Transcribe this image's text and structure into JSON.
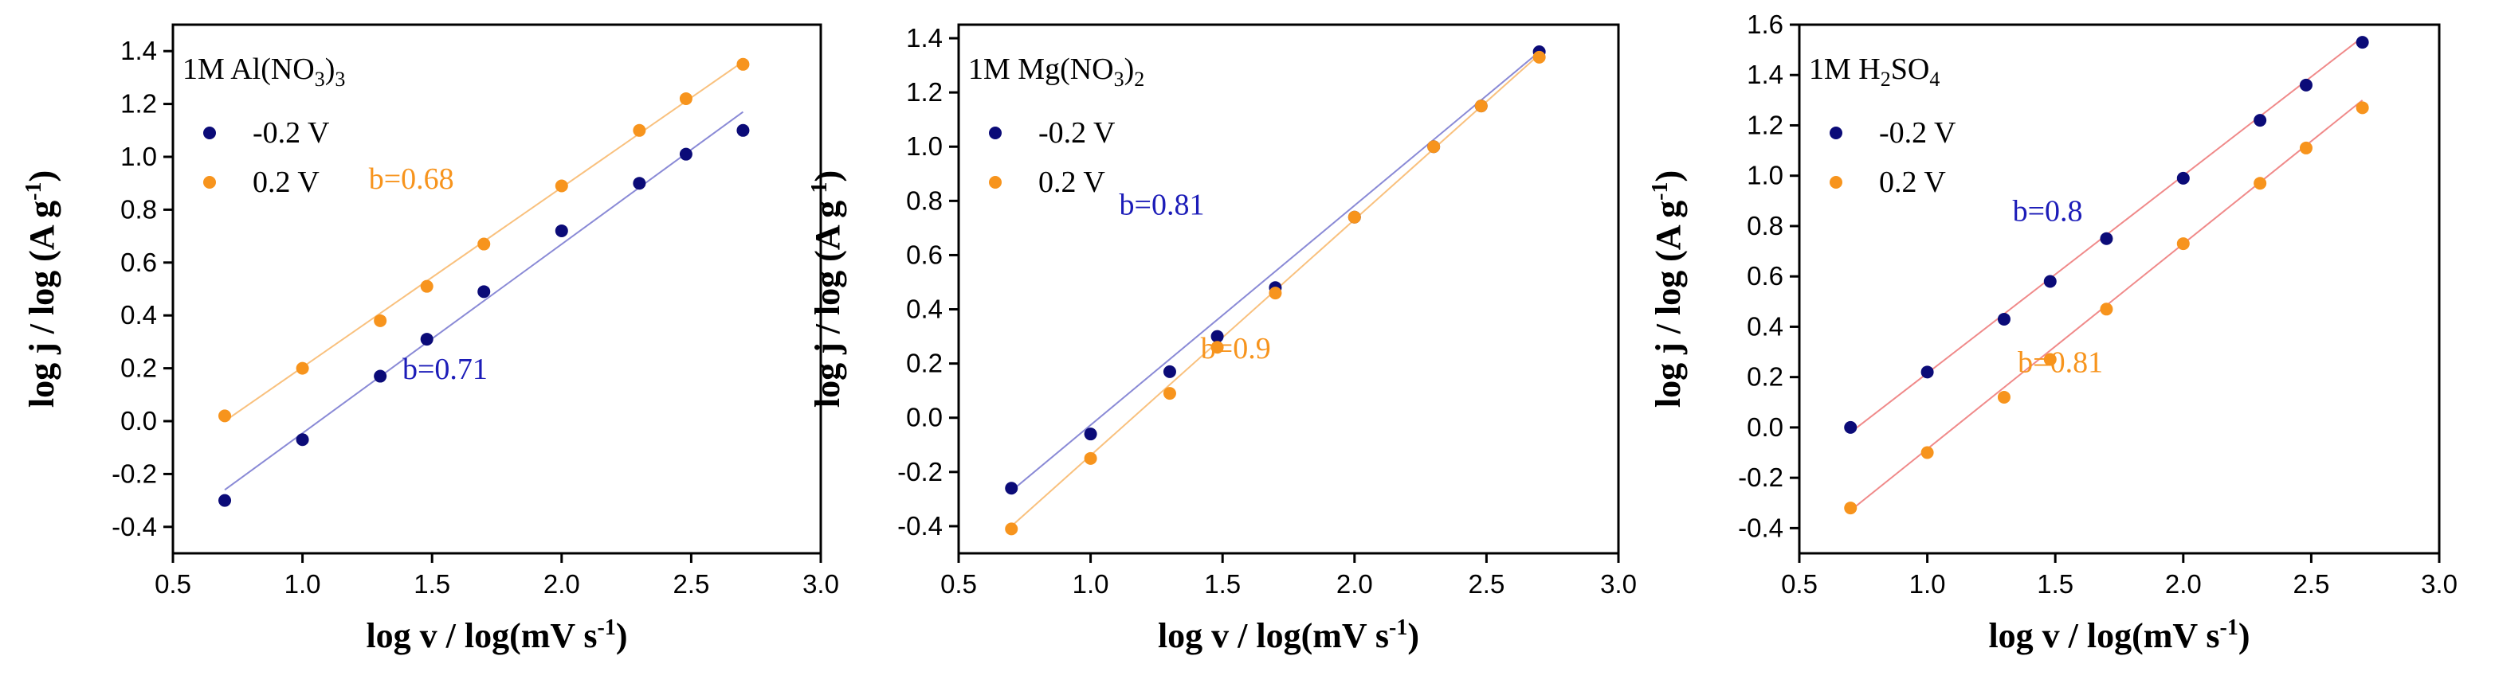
{
  "colors": {
    "navy": "#0b0b78",
    "orange": "#f7941d",
    "navy_line": "#8a8ad6",
    "orange_line": "#f9c17e",
    "navy_label": "#1c1cb8",
    "orange_label": "#f7941d",
    "red_line": "#f08a8a"
  },
  "chart_data": [
    {
      "type": "scatter",
      "panel_label": "1M Al(NO3)3",
      "panel_label_parts": {
        "prefix": "1M Al(NO",
        "sub1": "3",
        "mid": ")",
        "sub2": "3"
      },
      "xlabel": "log v / log(mV s-1)",
      "xlabel_parts": {
        "main": "log v / log(mV s",
        "sup": "-1",
        "end": ")"
      },
      "ylabel": "log j / log (A g-1)",
      "ylabel_parts": {
        "main": "log j / log (A g",
        "sup": "-1",
        "end": ")"
      },
      "xlim": [
        0.5,
        3.0
      ],
      "ylim": [
        -0.5,
        1.5
      ],
      "x_ticks": [
        "0.5",
        "1.0",
        "1.5",
        "2.0",
        "2.5",
        "3.0"
      ],
      "y_ticks": [
        "-0.4",
        "-0.2",
        "0.0",
        "0.2",
        "0.4",
        "0.6",
        "0.8",
        "1.0",
        "1.2",
        "1.4"
      ],
      "series": [
        {
          "name": "-0.2 V",
          "color_key": "navy",
          "line_color_key": "navy_line",
          "x": [
            0.7,
            1.0,
            1.3,
            1.48,
            1.7,
            2.0,
            2.3,
            2.48,
            2.7
          ],
          "y": [
            -0.3,
            -0.07,
            0.17,
            0.31,
            0.49,
            0.72,
            0.9,
            1.01,
            1.1
          ],
          "fit": {
            "x0": 0.7,
            "y0": -0.26,
            "x1": 2.7,
            "y1": 1.17
          },
          "slope_label": "b=0.71",
          "slope_label_pos": [
            1.55,
            0.16
          ],
          "label_color_key": "navy_label"
        },
        {
          "name": "0.2 V",
          "color_key": "orange",
          "line_color_key": "orange_line",
          "x": [
            0.7,
            1.0,
            1.3,
            1.48,
            1.7,
            2.0,
            2.3,
            2.48,
            2.7
          ],
          "y": [
            0.02,
            0.2,
            0.38,
            0.51,
            0.67,
            0.89,
            1.1,
            1.22,
            1.35
          ],
          "fit": {
            "x0": 0.7,
            "y0": 0.0,
            "x1": 2.7,
            "y1": 1.36
          },
          "slope_label": "b=0.68",
          "slope_label_pos": [
            1.42,
            0.88
          ],
          "label_color_key": "orange_label"
        }
      ]
    },
    {
      "type": "scatter",
      "panel_label": "1M Mg(NO3)2",
      "panel_label_parts": {
        "prefix": "1M Mg(NO",
        "sub1": "3",
        "mid": ")",
        "sub2": "2"
      },
      "xlabel": "log v / log(mV s-1)",
      "xlabel_parts": {
        "main": "log v / log(mV s",
        "sup": "-1",
        "end": ")"
      },
      "ylabel": "log j / log (A g-1)",
      "ylabel_parts": {
        "main": "log j / log (A g",
        "sup": "-1",
        "end": ")"
      },
      "xlim": [
        0.5,
        3.0
      ],
      "ylim": [
        -0.5,
        1.45
      ],
      "x_ticks": [
        "0.5",
        "1.0",
        "1.5",
        "2.0",
        "2.5",
        "3.0"
      ],
      "y_ticks": [
        "-0.4",
        "-0.2",
        "0.0",
        "0.2",
        "0.4",
        "0.6",
        "0.8",
        "1.0",
        "1.2",
        "1.4"
      ],
      "series": [
        {
          "name": "-0.2 V",
          "color_key": "navy",
          "line_color_key": "navy_line",
          "x": [
            0.7,
            1.0,
            1.3,
            1.48,
            1.7,
            2.0,
            2.3,
            2.48,
            2.7
          ],
          "y": [
            -0.26,
            -0.06,
            0.17,
            0.3,
            0.48,
            0.74,
            1.0,
            1.15,
            1.35
          ],
          "fit": {
            "x0": 0.7,
            "y0": -0.27,
            "x1": 2.7,
            "y1": 1.35
          },
          "slope_label": "b=0.81",
          "slope_label_pos": [
            1.27,
            0.75
          ],
          "label_color_key": "navy_label"
        },
        {
          "name": "0.2 V",
          "color_key": "orange",
          "line_color_key": "orange_line",
          "x": [
            0.7,
            1.0,
            1.3,
            1.48,
            1.7,
            2.0,
            2.3,
            2.48,
            2.7
          ],
          "y": [
            -0.41,
            -0.15,
            0.09,
            0.26,
            0.46,
            0.74,
            1.0,
            1.15,
            1.33
          ],
          "fit": {
            "x0": 0.7,
            "y0": -0.4,
            "x1": 2.7,
            "y1": 1.34
          },
          "slope_label": "b=0.9",
          "slope_label_pos": [
            1.55,
            0.22
          ],
          "label_color_key": "orange_label"
        }
      ]
    },
    {
      "type": "scatter",
      "panel_label": "1M H2SO4",
      "panel_label_parts": {
        "prefix": "1M H",
        "sub1": "2",
        "mid": "SO",
        "sub2": "4"
      },
      "xlabel": "log v / log(mV s-1)",
      "xlabel_parts": {
        "main": "log v / log(mV s",
        "sup": "-1",
        "end": ")"
      },
      "ylabel": "log j / log (A g-1)",
      "ylabel_parts": {
        "main": "log j / log (A g",
        "sup": "-1",
        "end": ")"
      },
      "xlim": [
        0.5,
        3.0
      ],
      "ylim": [
        -0.5,
        1.6
      ],
      "x_ticks": [
        "0.5",
        "1.0",
        "1.5",
        "2.0",
        "2.5",
        "3.0"
      ],
      "y_ticks": [
        "-0.4",
        "-0.2",
        "0.0",
        "0.2",
        "0.4",
        "0.6",
        "0.8",
        "1.0",
        "1.2",
        "1.4",
        "1.6"
      ],
      "series": [
        {
          "name": "-0.2 V",
          "color_key": "navy",
          "line_color_key": "red_line",
          "x": [
            0.7,
            1.0,
            1.3,
            1.48,
            1.7,
            2.0,
            2.3,
            2.48,
            2.7
          ],
          "y": [
            0.0,
            0.22,
            0.43,
            0.58,
            0.75,
            0.99,
            1.22,
            1.36,
            1.53
          ],
          "fit": {
            "x0": 0.7,
            "y0": -0.02,
            "x1": 2.7,
            "y1": 1.55
          },
          "slope_label": "b=0.8",
          "slope_label_pos": [
            1.47,
            0.82
          ],
          "label_color_key": "navy_label"
        },
        {
          "name": "0.2 V",
          "color_key": "orange",
          "line_color_key": "red_line",
          "x": [
            0.7,
            1.0,
            1.3,
            1.48,
            1.7,
            2.0,
            2.3,
            2.48,
            2.7
          ],
          "y": [
            -0.32,
            -0.1,
            0.12,
            0.27,
            0.47,
            0.73,
            0.97,
            1.11,
            1.27
          ],
          "fit": {
            "x0": 0.7,
            "y0": -0.33,
            "x1": 2.7,
            "y1": 1.3
          },
          "slope_label": "b=0.81",
          "slope_label_pos": [
            1.52,
            0.22
          ],
          "label_color_key": "orange_label"
        }
      ]
    }
  ]
}
